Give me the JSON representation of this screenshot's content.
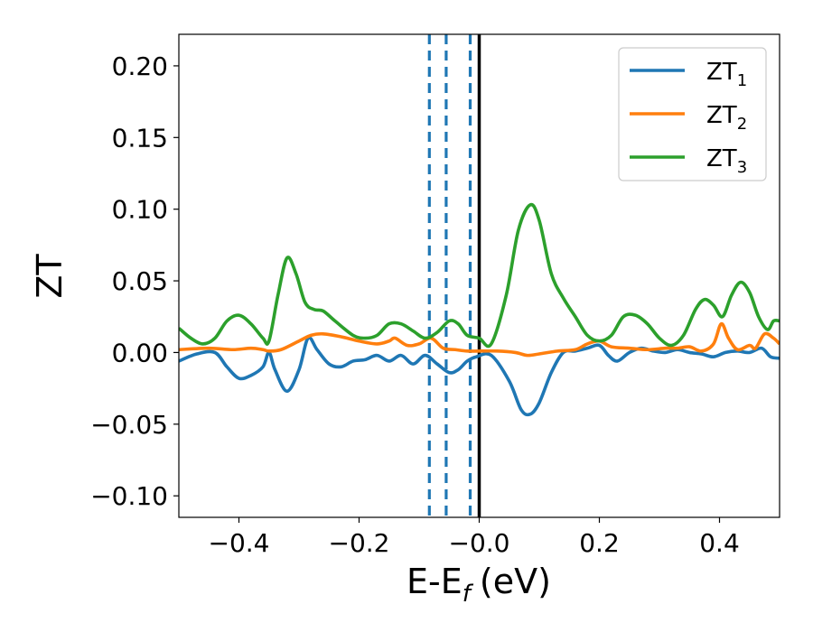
{
  "chart_data": {
    "type": "line",
    "xlabel": "E-E",
    "xlabel_sub": "f",
    "xlabel_unit": "(eV)",
    "ylabel": "ZT",
    "xlim": [
      -0.5,
      0.5
    ],
    "ylim": [
      -0.115,
      0.222
    ],
    "xticks": [
      -0.4,
      -0.2,
      0.0,
      0.2,
      0.4
    ],
    "xtick_labels": [
      "−0.4",
      "−0.2",
      "−0.0",
      "0.2",
      "0.4"
    ],
    "yticks": [
      -0.1,
      -0.05,
      0.0,
      0.05,
      0.1,
      0.15,
      0.2
    ],
    "ytick_labels": [
      "−0.10",
      "−0.05",
      "0.00",
      "0.05",
      "0.10",
      "0.15",
      "0.20"
    ],
    "grid": false,
    "legend_position": "top-right",
    "vlines": [
      {
        "x": -0.083,
        "style": "dashed",
        "color": "#1f77b4"
      },
      {
        "x": -0.055,
        "style": "dashed",
        "color": "#1f77b4"
      },
      {
        "x": -0.015,
        "style": "dashed",
        "color": "#1f77b4"
      },
      {
        "x": 0.0,
        "style": "solid",
        "color": "#000000"
      }
    ],
    "series": [
      {
        "name": "ZT",
        "name_sub": "1",
        "color": "#1f77b4",
        "points": [
          [
            -0.5,
            -0.006
          ],
          [
            -0.47,
            -0.001
          ],
          [
            -0.44,
            0.0
          ],
          [
            -0.42,
            -0.01
          ],
          [
            -0.4,
            -0.018
          ],
          [
            -0.38,
            -0.016
          ],
          [
            -0.36,
            -0.01
          ],
          [
            -0.35,
            0.0
          ],
          [
            -0.34,
            -0.012
          ],
          [
            -0.32,
            -0.027
          ],
          [
            -0.3,
            -0.012
          ],
          [
            -0.285,
            0.01
          ],
          [
            -0.27,
            0.002
          ],
          [
            -0.25,
            -0.008
          ],
          [
            -0.23,
            -0.01
          ],
          [
            -0.21,
            -0.006
          ],
          [
            -0.19,
            -0.005
          ],
          [
            -0.17,
            -0.002
          ],
          [
            -0.15,
            -0.006
          ],
          [
            -0.13,
            -0.002
          ],
          [
            -0.11,
            -0.008
          ],
          [
            -0.09,
            -0.002
          ],
          [
            -0.07,
            -0.008
          ],
          [
            -0.05,
            -0.014
          ],
          [
            -0.035,
            -0.012
          ],
          [
            -0.02,
            -0.006
          ],
          [
            -0.005,
            -0.003
          ],
          [
            0.02,
            -0.002
          ],
          [
            0.05,
            -0.02
          ],
          [
            0.07,
            -0.04
          ],
          [
            0.085,
            -0.043
          ],
          [
            0.1,
            -0.035
          ],
          [
            0.12,
            -0.014
          ],
          [
            0.14,
            0.0
          ],
          [
            0.16,
            0.001
          ],
          [
            0.18,
            0.003
          ],
          [
            0.2,
            0.005
          ],
          [
            0.215,
            -0.002
          ],
          [
            0.23,
            -0.006
          ],
          [
            0.25,
            0.0
          ],
          [
            0.27,
            0.003
          ],
          [
            0.29,
            0.001
          ],
          [
            0.31,
            0.0
          ],
          [
            0.33,
            0.002
          ],
          [
            0.35,
            0.0
          ],
          [
            0.37,
            -0.001
          ],
          [
            0.39,
            -0.003
          ],
          [
            0.41,
            0.0
          ],
          [
            0.43,
            0.001
          ],
          [
            0.45,
            0.0
          ],
          [
            0.47,
            0.003
          ],
          [
            0.485,
            -0.003
          ],
          [
            0.5,
            -0.004
          ]
        ]
      },
      {
        "name": "ZT",
        "name_sub": "2",
        "color": "#ff7f0e",
        "points": [
          [
            -0.5,
            0.002
          ],
          [
            -0.45,
            0.003
          ],
          [
            -0.41,
            0.002
          ],
          [
            -0.38,
            0.003
          ],
          [
            -0.36,
            0.002
          ],
          [
            -0.35,
            0.001
          ],
          [
            -0.33,
            0.002
          ],
          [
            -0.3,
            0.008
          ],
          [
            -0.28,
            0.012
          ],
          [
            -0.26,
            0.013
          ],
          [
            -0.23,
            0.011
          ],
          [
            -0.2,
            0.008
          ],
          [
            -0.17,
            0.006
          ],
          [
            -0.15,
            0.008
          ],
          [
            -0.14,
            0.01
          ],
          [
            -0.12,
            0.005
          ],
          [
            -0.1,
            0.006
          ],
          [
            -0.08,
            0.01
          ],
          [
            -0.06,
            0.003
          ],
          [
            -0.04,
            0.002
          ],
          [
            -0.02,
            0.001
          ],
          [
            0.0,
            0.001
          ],
          [
            0.03,
            0.001
          ],
          [
            0.06,
            0.0
          ],
          [
            0.08,
            -0.002
          ],
          [
            0.1,
            -0.001
          ],
          [
            0.13,
            0.001
          ],
          [
            0.16,
            0.002
          ],
          [
            0.18,
            0.006
          ],
          [
            0.2,
            0.008
          ],
          [
            0.22,
            0.004
          ],
          [
            0.25,
            0.003
          ],
          [
            0.28,
            0.002
          ],
          [
            0.31,
            0.003
          ],
          [
            0.33,
            0.003
          ],
          [
            0.35,
            0.004
          ],
          [
            0.37,
            0.001
          ],
          [
            0.39,
            0.006
          ],
          [
            0.403,
            0.02
          ],
          [
            0.415,
            0.01
          ],
          [
            0.43,
            0.002
          ],
          [
            0.45,
            0.005
          ],
          [
            0.46,
            0.003
          ],
          [
            0.475,
            0.013
          ],
          [
            0.49,
            0.01
          ],
          [
            0.5,
            0.006
          ]
        ]
      },
      {
        "name": "ZT",
        "name_sub": "3",
        "color": "#2ca02c",
        "points": [
          [
            -0.5,
            0.017
          ],
          [
            -0.48,
            0.01
          ],
          [
            -0.46,
            0.006
          ],
          [
            -0.44,
            0.01
          ],
          [
            -0.42,
            0.022
          ],
          [
            -0.4,
            0.026
          ],
          [
            -0.38,
            0.02
          ],
          [
            -0.36,
            0.01
          ],
          [
            -0.35,
            0.008
          ],
          [
            -0.335,
            0.04
          ],
          [
            -0.32,
            0.066
          ],
          [
            -0.305,
            0.055
          ],
          [
            -0.29,
            0.035
          ],
          [
            -0.275,
            0.03
          ],
          [
            -0.26,
            0.029
          ],
          [
            -0.24,
            0.022
          ],
          [
            -0.21,
            0.012
          ],
          [
            -0.19,
            0.01
          ],
          [
            -0.17,
            0.012
          ],
          [
            -0.15,
            0.02
          ],
          [
            -0.13,
            0.02
          ],
          [
            -0.11,
            0.015
          ],
          [
            -0.09,
            0.01
          ],
          [
            -0.07,
            0.014
          ],
          [
            -0.05,
            0.022
          ],
          [
            -0.035,
            0.02
          ],
          [
            -0.02,
            0.012
          ],
          [
            0.0,
            0.01
          ],
          [
            0.02,
            0.006
          ],
          [
            0.045,
            0.04
          ],
          [
            0.065,
            0.085
          ],
          [
            0.085,
            0.103
          ],
          [
            0.1,
            0.092
          ],
          [
            0.12,
            0.055
          ],
          [
            0.14,
            0.038
          ],
          [
            0.16,
            0.025
          ],
          [
            0.18,
            0.012
          ],
          [
            0.2,
            0.008
          ],
          [
            0.22,
            0.012
          ],
          [
            0.24,
            0.025
          ],
          [
            0.26,
            0.026
          ],
          [
            0.28,
            0.02
          ],
          [
            0.3,
            0.01
          ],
          [
            0.32,
            0.005
          ],
          [
            0.34,
            0.012
          ],
          [
            0.36,
            0.03
          ],
          [
            0.375,
            0.037
          ],
          [
            0.39,
            0.033
          ],
          [
            0.405,
            0.025
          ],
          [
            0.42,
            0.04
          ],
          [
            0.435,
            0.049
          ],
          [
            0.45,
            0.042
          ],
          [
            0.465,
            0.025
          ],
          [
            0.48,
            0.016
          ],
          [
            0.49,
            0.022
          ],
          [
            0.5,
            0.022
          ]
        ]
      }
    ]
  }
}
